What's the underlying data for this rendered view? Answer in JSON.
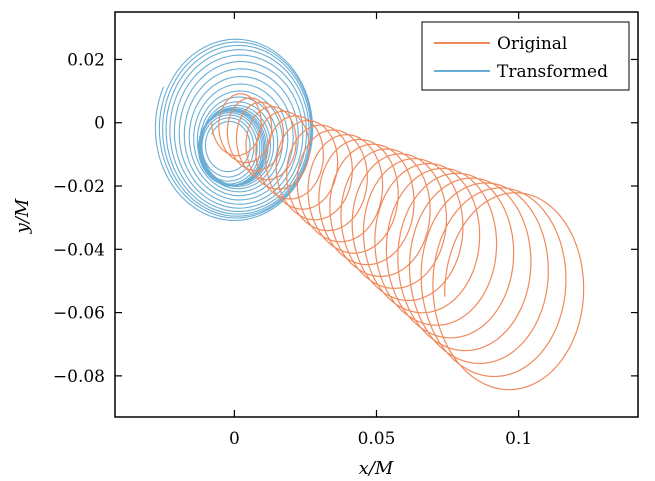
{
  "chart_data": {
    "type": "line",
    "title": "",
    "xlabel": "x/M",
    "ylabel": "y/M",
    "xlim": [
      -0.042,
      0.142
    ],
    "ylim": [
      -0.093,
      0.035
    ],
    "xticks": [
      0,
      0.05,
      0.1
    ],
    "xtick_labels": [
      "0",
      "0.05",
      "0.1"
    ],
    "yticks": [
      0.02,
      0,
      -0.02,
      -0.04,
      -0.06,
      -0.08
    ],
    "ytick_labels": [
      "0.02",
      "0",
      "−0.02",
      "−0.04",
      "−0.06",
      "−0.08"
    ],
    "legend_position": "top-right",
    "grid": false,
    "series": [
      {
        "name": "Original",
        "color": "#f08a5d",
        "description_of_shape": "spiral of loops whose center drifts from about (0, 0) to about (0.1, -0.055) while radius grows",
        "center_start": [
          0.0,
          0.0
        ],
        "center_end": [
          0.1,
          -0.055
        ],
        "radius_start": 0.008,
        "radius_end": 0.026,
        "turns": 22
      },
      {
        "name": "Transformed",
        "color": "#6aaed6",
        "description_of_shape": "tight spiral of loops centered near the origin",
        "center": [
          0.0,
          -0.005
        ],
        "radius_min": 0.006,
        "radius_max": 0.028,
        "turns": 22
      }
    ]
  }
}
